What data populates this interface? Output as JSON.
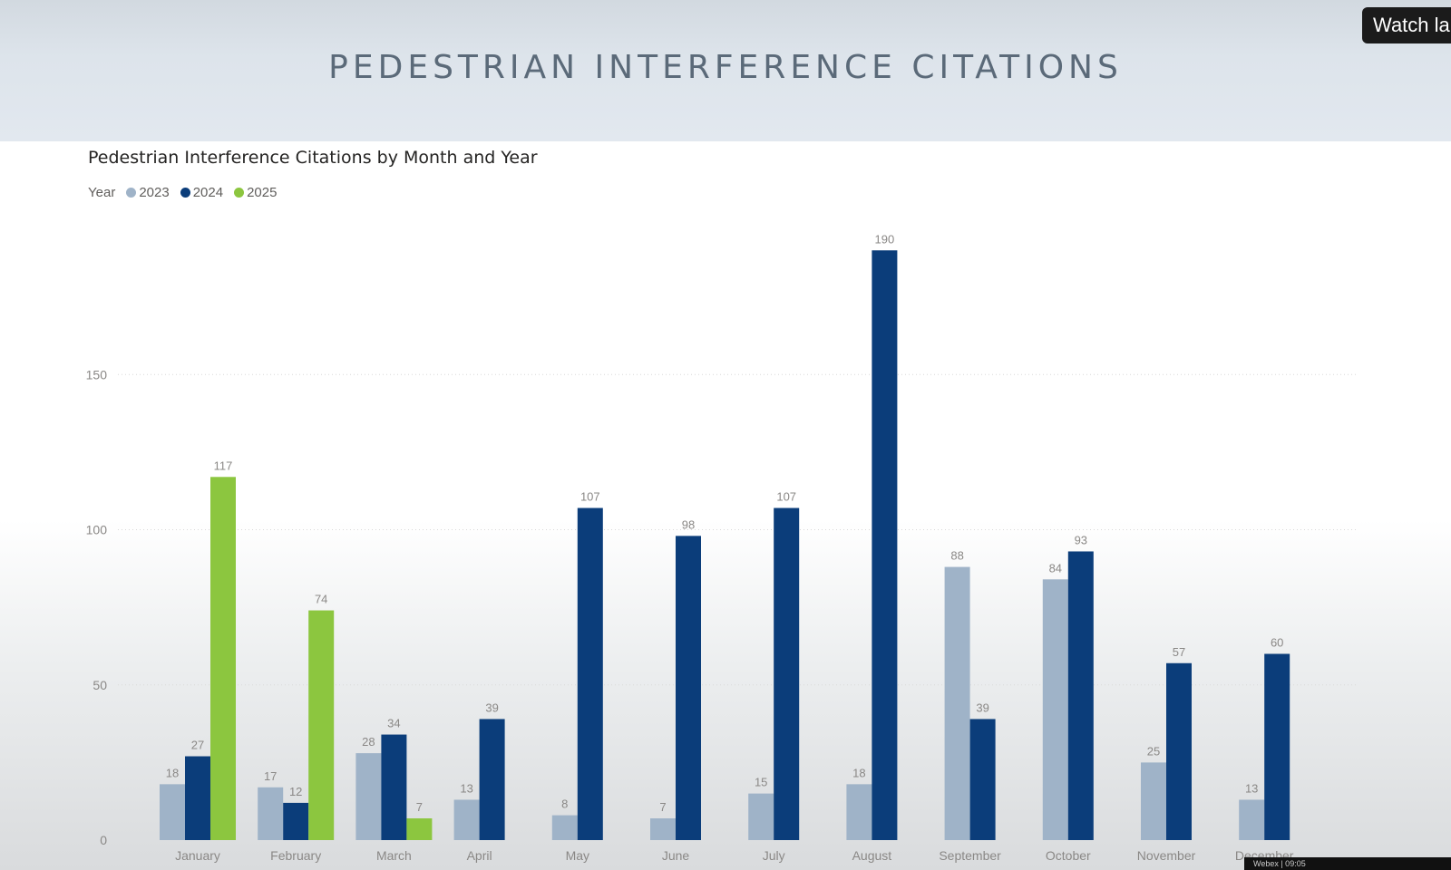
{
  "slide": {
    "title": "PEDESTRIAN INTERFERENCE CITATIONS"
  },
  "overlay": {
    "watch_label": "Watch la",
    "taskbar_text": "Webex | 09:05"
  },
  "colors": {
    "2023": "#9fb3c8",
    "2024": "#0b3d7a",
    "2025": "#8cc63f",
    "grid": "#d9d9d9",
    "text": "#605e5c"
  },
  "chart_data": {
    "type": "bar",
    "title": "Pedestrian Interference Citations by Month and Year",
    "legend_title": "Year",
    "legend_position": "top-left",
    "categories": [
      "January",
      "February",
      "March",
      "April",
      "May",
      "June",
      "July",
      "August",
      "September",
      "October",
      "November",
      "December"
    ],
    "series": [
      {
        "name": "2023",
        "values": [
          18,
          17,
          28,
          13,
          8,
          7,
          15,
          18,
          88,
          84,
          25,
          13
        ]
      },
      {
        "name": "2024",
        "values": [
          27,
          12,
          34,
          39,
          107,
          98,
          107,
          190,
          39,
          93,
          57,
          60
        ]
      },
      {
        "name": "2025",
        "values": [
          117,
          74,
          7,
          null,
          null,
          null,
          null,
          null,
          null,
          null,
          null,
          null
        ]
      }
    ],
    "yticks": [
      0,
      50,
      100,
      150
    ],
    "ylim": [
      0,
      200
    ],
    "grid": true
  }
}
